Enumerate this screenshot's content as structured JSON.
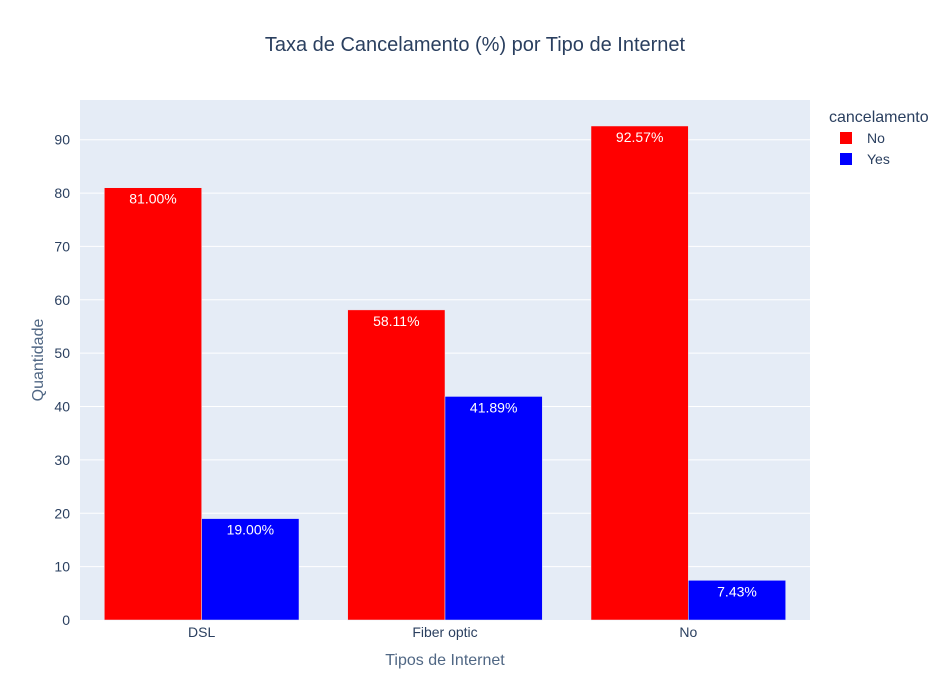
{
  "chart_data": {
    "type": "bar",
    "title": "Taxa de Cancelamento (%) por Tipo de Internet",
    "xlabel": "Tipos de Internet",
    "ylabel": "Quantidade",
    "categories": [
      "DSL",
      "Fiber optic",
      "No"
    ],
    "series": [
      {
        "name": "No",
        "color": "#ff0000",
        "values": [
          81.0,
          58.11,
          92.57
        ],
        "labels": [
          "81.00%",
          "58.11%",
          "92.57%"
        ]
      },
      {
        "name": "Yes",
        "color": "#0000ff",
        "values": [
          19.0,
          41.89,
          7.43
        ],
        "labels": [
          "19.00%",
          "41.89%",
          "7.43%"
        ]
      }
    ],
    "ylim": [
      0,
      97.44
    ],
    "yticks": [
      0,
      10,
      20,
      30,
      40,
      50,
      60,
      70,
      80,
      90
    ],
    "grid": true,
    "legend": {
      "title": "cancelamento",
      "placement": "top-right"
    },
    "plot_background": "#e5ecf6"
  }
}
